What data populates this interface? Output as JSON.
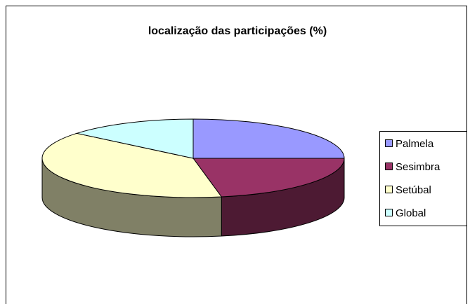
{
  "chart_data": {
    "type": "pie3d",
    "title": "localização das participações (%)",
    "categories": [
      "Palmela",
      "Sesimbra",
      "Setúbal",
      "Global"
    ],
    "values": [
      25,
      22,
      39,
      14
    ],
    "colors": [
      "#9999ff",
      "#993366",
      "#ffffcc",
      "#ccffff"
    ],
    "legend": "right"
  }
}
